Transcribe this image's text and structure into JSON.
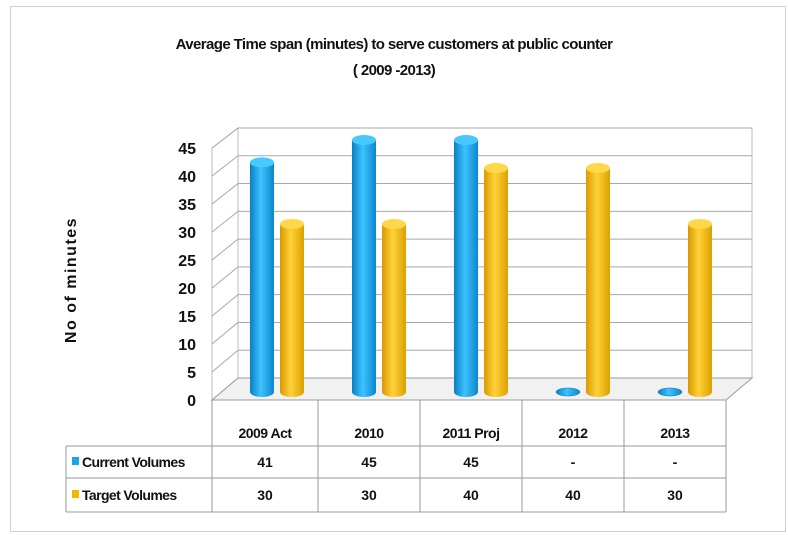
{
  "chart_data": {
    "type": "bar",
    "title": "Average Time  span (minutes) to serve customers  at public counter",
    "subtitle": "( 2009 -2013)",
    "ylabel": "No of minutes",
    "xlabel": "",
    "ylim": [
      0,
      45
    ],
    "yticks": [
      0,
      5,
      10,
      15,
      20,
      25,
      30,
      35,
      40,
      45
    ],
    "grid": true,
    "legend": "data-table",
    "categories": [
      "2009 Act",
      "2010",
      "2011 Proj",
      "2012",
      "2013"
    ],
    "series": [
      {
        "name": "Current Volumes",
        "color": "#1aa7e8",
        "values": [
          41,
          45,
          45,
          null,
          null
        ],
        "labels": [
          "41",
          "45",
          "45",
          "-",
          "-"
        ]
      },
      {
        "name": "Target Volumes",
        "color": "#f5b800",
        "values": [
          30,
          30,
          40,
          40,
          30
        ],
        "labels": [
          "30",
          "30",
          "40",
          "40",
          "30"
        ]
      }
    ]
  }
}
